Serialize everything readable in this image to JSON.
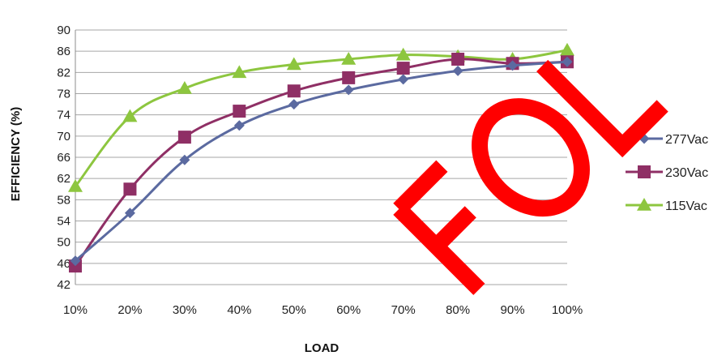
{
  "chart_data": {
    "type": "line",
    "xlabel": "LOAD",
    "ylabel": "EFFICIENCY (%)",
    "categories": [
      "10%",
      "20%",
      "30%",
      "40%",
      "50%",
      "60%",
      "70%",
      "80%",
      "90%",
      "100%"
    ],
    "yticks": [
      "42",
      "46",
      "50",
      "54",
      "58",
      "62",
      "66",
      "70",
      "74",
      "78",
      "82",
      "86",
      "90"
    ],
    "ylim": [
      42,
      90
    ],
    "grid": true,
    "legend_position": "right",
    "series": [
      {
        "name": "277Vac",
        "color": "#5b6aa0",
        "marker": "diamond",
        "values": [
          46.5,
          55.5,
          65.5,
          72.0,
          76.0,
          78.7,
          80.7,
          82.3,
          83.3,
          84.0
        ]
      },
      {
        "name": "230Vac",
        "color": "#8f2f65",
        "marker": "square",
        "values": [
          45.5,
          60.0,
          69.8,
          74.7,
          78.5,
          81.0,
          82.8,
          84.5,
          83.7,
          84.0
        ]
      },
      {
        "name": "115Vac",
        "color": "#8dc63f",
        "marker": "triangle",
        "values": [
          60.5,
          73.7,
          79.0,
          82.0,
          83.5,
          84.5,
          85.3,
          85.0,
          84.5,
          86.2
        ]
      }
    ],
    "watermark": {
      "text": "FOL",
      "color": "#ff0000"
    }
  }
}
